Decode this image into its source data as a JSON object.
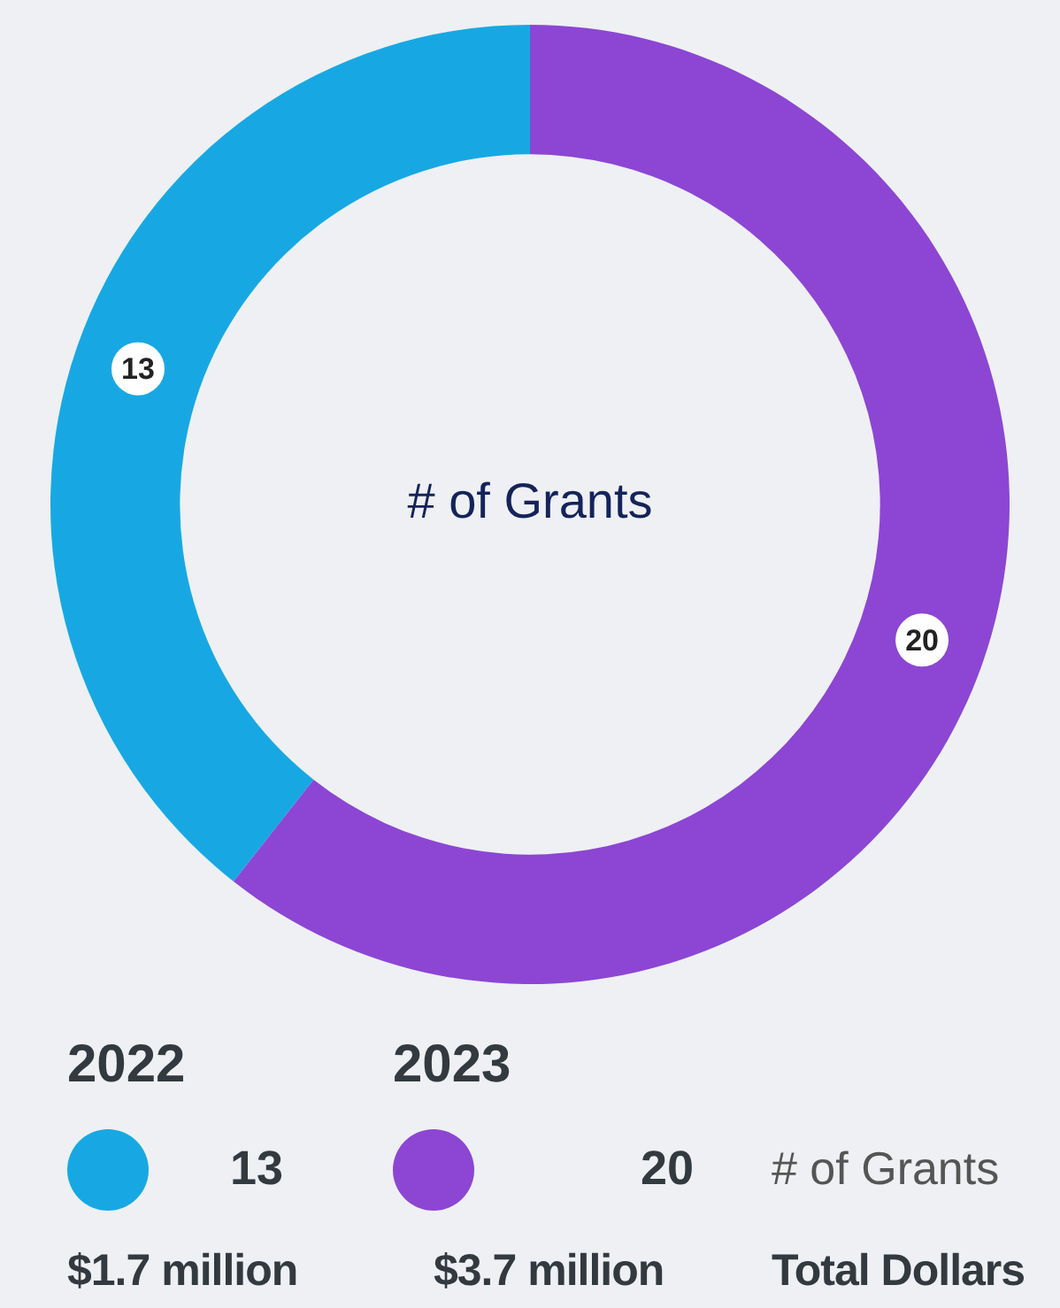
{
  "chart_data": {
    "type": "donut",
    "title": "# of Grants",
    "categories": [
      "2022",
      "2023"
    ],
    "values": [
      13,
      20
    ],
    "colors": [
      "#17a8e3",
      "#8c46d3"
    ],
    "data_labels": true,
    "annotations": [
      "# of Grants",
      "$1.7 million",
      "$3.7 million",
      "Total Dollars",
      "13",
      "20"
    ]
  }
}
